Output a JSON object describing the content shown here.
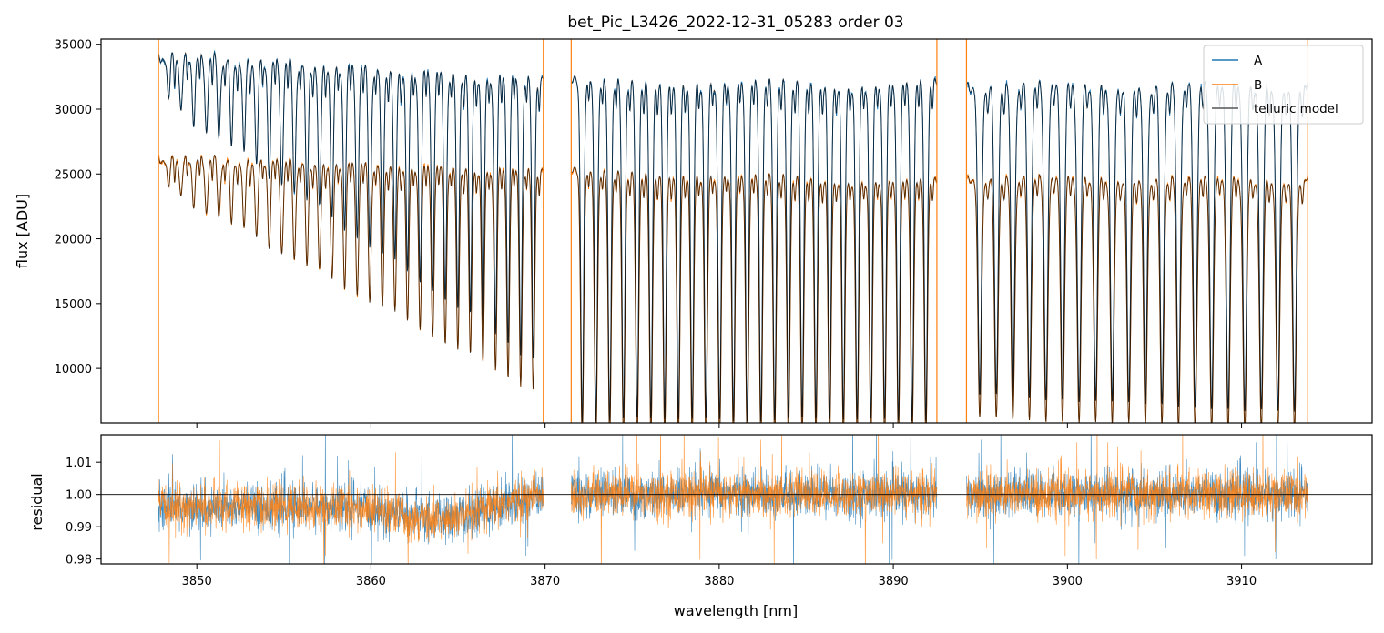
{
  "chart_data": [
    {
      "panel": "top",
      "type": "line",
      "title": "bet_Pic_L3426_2022-12-31_05283  order 03",
      "xlabel": "",
      "ylabel": "flux [ADU]",
      "xlim": [
        3844.5,
        3917.5
      ],
      "ylim": [
        5800,
        35400
      ],
      "yticks": [
        10000,
        15000,
        20000,
        25000,
        30000,
        35000
      ],
      "ytick_labels": [
        "10000",
        "15000",
        "20000",
        "25000",
        "30000",
        "35000"
      ],
      "xticks": [
        3850,
        3860,
        3870,
        3880,
        3890,
        3900,
        3910
      ],
      "legend": {
        "location": "top-right",
        "entries": [
          "A",
          "B",
          "telluric model"
        ]
      },
      "segments": [
        {
          "x_start": 3847.8,
          "x_end": 3869.9,
          "A_continuum_start": 34100,
          "A_continuum_end": 32100,
          "B_continuum_start": 26200,
          "B_continuum_end": 25100,
          "line_min_start": 31000,
          "line_min_end": 10000,
          "line_count": 30
        },
        {
          "x_start": 3871.5,
          "x_end": 3892.5,
          "A_continuum_start": 32000,
          "A_continuum_end": 31800,
          "B_continuum_start": 25100,
          "B_continuum_end": 24300,
          "line_min_start": 6000,
          "line_min_end": 6000,
          "line_count": 26
        },
        {
          "x_start": 3894.2,
          "x_end": 3913.8,
          "A_continuum_start": 31800,
          "A_continuum_end": 31700,
          "B_continuum_start": 24700,
          "B_continuum_end": 24500,
          "line_min_start": 8000,
          "line_min_end": 6500,
          "line_count": 20
        }
      ],
      "series": [
        {
          "name": "A",
          "color": "#1f77b4"
        },
        {
          "name": "B",
          "color": "#ff7f0e"
        },
        {
          "name": "telluric model",
          "color": "#000000"
        }
      ]
    },
    {
      "panel": "bottom",
      "type": "line",
      "xlabel": "wavelength [nm]",
      "ylabel": "residual",
      "xlim": [
        3844.5,
        3917.5
      ],
      "ylim": [
        0.9785,
        1.0185
      ],
      "yticks": [
        0.98,
        0.99,
        1.0,
        1.01
      ],
      "ytick_labels": [
        "0.98",
        "0.99",
        "1.00",
        "1.01"
      ],
      "xticks": [
        3850,
        3860,
        3870,
        3880,
        3890,
        3900,
        3910
      ],
      "xtick_labels": [
        "3850",
        "3860",
        "3870",
        "3880",
        "3890",
        "3900",
        "3910"
      ],
      "reference_line": 1.0,
      "series": [
        {
          "name": "A",
          "color": "#1f77b4",
          "noise": 0.0035
        },
        {
          "name": "B",
          "color": "#ff7f0e",
          "noise": 0.0035
        }
      ]
    }
  ]
}
